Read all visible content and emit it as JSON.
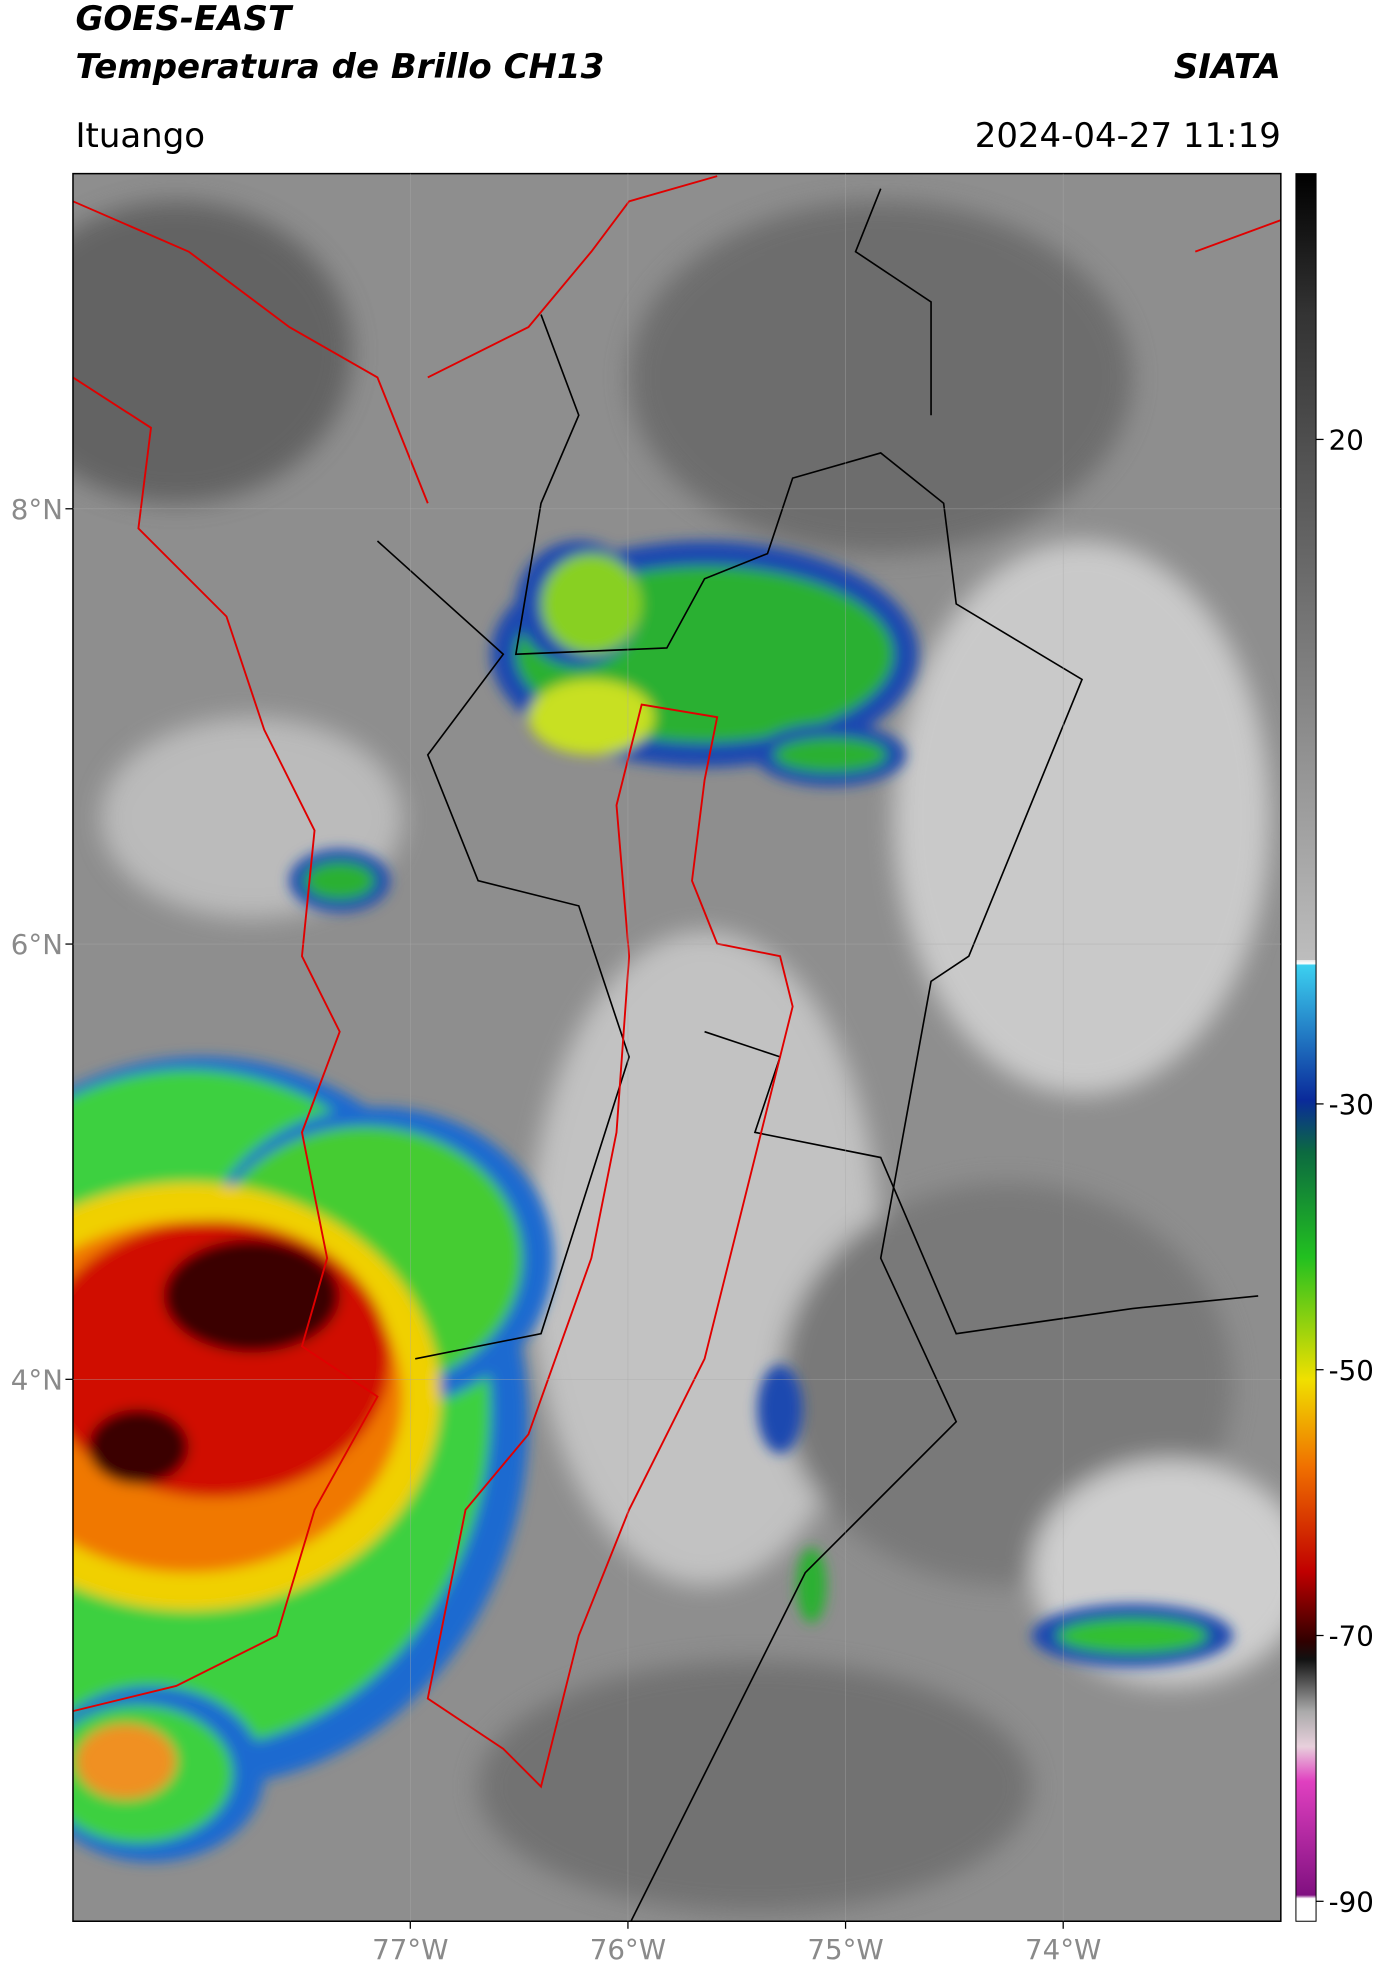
{
  "header": {
    "title": "GOES-EAST",
    "subtitle": "Temperatura de Brillo CH13",
    "agency": "SIATA",
    "location": "Ituango",
    "datetime": "2024-04-27 11:19"
  },
  "map": {
    "xlim": [
      -78.55,
      -73.0
    ],
    "ylim": [
      1.51,
      9.54
    ],
    "xticks": [
      {
        "value": -77,
        "label": "77°W"
      },
      {
        "value": -76,
        "label": "76°W"
      },
      {
        "value": -75,
        "label": "75°W"
      },
      {
        "value": -74,
        "label": "74°W"
      }
    ],
    "yticks": [
      {
        "value": 8,
        "label": "8°N"
      },
      {
        "value": 6,
        "label": "6°N"
      },
      {
        "value": 4,
        "label": "4°N"
      }
    ]
  },
  "colorbar": {
    "lim": [
      -91.5,
      40
    ],
    "ticks": [
      20,
      -30,
      -50,
      -70,
      -90
    ]
  }
}
